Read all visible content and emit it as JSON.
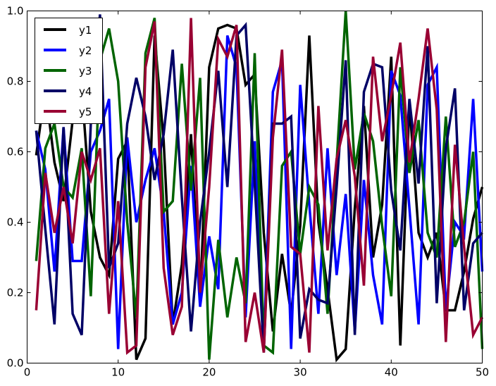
{
  "chart_data": {
    "type": "line",
    "title": "",
    "xlabel": "",
    "ylabel": "",
    "xlim": [
      0,
      50
    ],
    "ylim": [
      0.0,
      1.0
    ],
    "grid": false,
    "legend_placement": "top-left",
    "xticks": [
      "0",
      "10",
      "20",
      "30",
      "40",
      "50"
    ],
    "yticks": [
      "0.0",
      "0.2",
      "0.4",
      "0.6",
      "0.8",
      "1.0"
    ],
    "x": [
      1,
      2,
      3,
      4,
      5,
      6,
      7,
      8,
      9,
      10,
      11,
      12,
      13,
      14,
      15,
      16,
      17,
      18,
      19,
      20,
      21,
      22,
      23,
      24,
      25,
      26,
      27,
      28,
      29,
      30,
      31,
      32,
      33,
      34,
      35,
      36,
      37,
      38,
      39,
      40,
      41,
      42,
      43,
      44,
      45,
      46,
      47,
      48,
      49,
      50
    ],
    "series": [
      {
        "name": "y1",
        "color": "#000000",
        "values": [
          0.59,
          0.78,
          0.57,
          0.46,
          0.69,
          0.78,
          0.43,
          0.3,
          0.25,
          0.58,
          0.63,
          0.01,
          0.07,
          0.93,
          0.63,
          0.11,
          0.28,
          0.65,
          0.17,
          0.84,
          0.95,
          0.96,
          0.95,
          0.79,
          0.82,
          0.37,
          0.09,
          0.31,
          0.14,
          0.39,
          0.93,
          0.4,
          0.21,
          0.01,
          0.04,
          0.44,
          0.73,
          0.3,
          0.45,
          0.87,
          0.05,
          0.74,
          0.37,
          0.3,
          0.37,
          0.15,
          0.15,
          0.26,
          0.41,
          0.5
        ]
      },
      {
        "name": "y2",
        "color": "#0000ff",
        "values": [
          0.66,
          0.55,
          0.26,
          0.67,
          0.29,
          0.29,
          0.6,
          0.66,
          0.75,
          0.04,
          0.64,
          0.4,
          0.52,
          0.61,
          0.43,
          0.11,
          0.2,
          0.56,
          0.16,
          0.36,
          0.21,
          0.93,
          0.84,
          0.13,
          0.63,
          0.05,
          0.77,
          0.86,
          0.04,
          0.79,
          0.45,
          0.14,
          0.61,
          0.25,
          0.48,
          0.09,
          0.52,
          0.25,
          0.11,
          0.83,
          0.76,
          0.44,
          0.11,
          0.79,
          0.84,
          0.15,
          0.4,
          0.36,
          0.75,
          0.26
        ]
      },
      {
        "name": "y3",
        "color": "#006400",
        "values": [
          0.29,
          0.61,
          0.68,
          0.5,
          0.47,
          0.61,
          0.19,
          0.86,
          0.95,
          0.8,
          0.4,
          0.13,
          0.88,
          0.98,
          0.43,
          0.46,
          0.85,
          0.49,
          0.81,
          0.01,
          0.35,
          0.13,
          0.3,
          0.17,
          0.88,
          0.05,
          0.03,
          0.56,
          0.6,
          0.31,
          0.5,
          0.45,
          0.14,
          0.57,
          1.0,
          0.55,
          0.71,
          0.63,
          0.39,
          0.19,
          0.84,
          0.54,
          0.69,
          0.37,
          0.3,
          0.7,
          0.33,
          0.4,
          0.6,
          0.04
        ]
      },
      {
        "name": "y4",
        "color": "#000066",
        "values": [
          0.66,
          0.38,
          0.11,
          0.67,
          0.14,
          0.08,
          0.68,
          0.99,
          0.27,
          0.34,
          0.68,
          0.81,
          0.7,
          0.52,
          0.65,
          0.89,
          0.47,
          0.09,
          0.4,
          0.6,
          0.83,
          0.5,
          0.93,
          0.96,
          0.51,
          0.03,
          0.68,
          0.68,
          0.7,
          0.07,
          0.21,
          0.18,
          0.17,
          0.5,
          0.86,
          0.08,
          0.77,
          0.85,
          0.84,
          0.49,
          0.32,
          0.75,
          0.51,
          0.9,
          0.17,
          0.61,
          0.78,
          0.15,
          0.34,
          0.37
        ]
      },
      {
        "name": "y5",
        "color": "#990033",
        "values": [
          0.15,
          0.54,
          0.37,
          0.5,
          0.34,
          0.6,
          0.52,
          0.61,
          0.14,
          0.46,
          0.03,
          0.05,
          0.84,
          0.97,
          0.27,
          0.08,
          0.16,
          0.98,
          0.2,
          0.5,
          0.92,
          0.87,
          0.96,
          0.06,
          0.2,
          0.03,
          0.64,
          0.89,
          0.33,
          0.31,
          0.03,
          0.73,
          0.32,
          0.58,
          0.69,
          0.53,
          0.22,
          0.87,
          0.63,
          0.76,
          0.91,
          0.57,
          0.75,
          0.95,
          0.72,
          0.06,
          0.62,
          0.33,
          0.08,
          0.13
        ]
      }
    ]
  }
}
